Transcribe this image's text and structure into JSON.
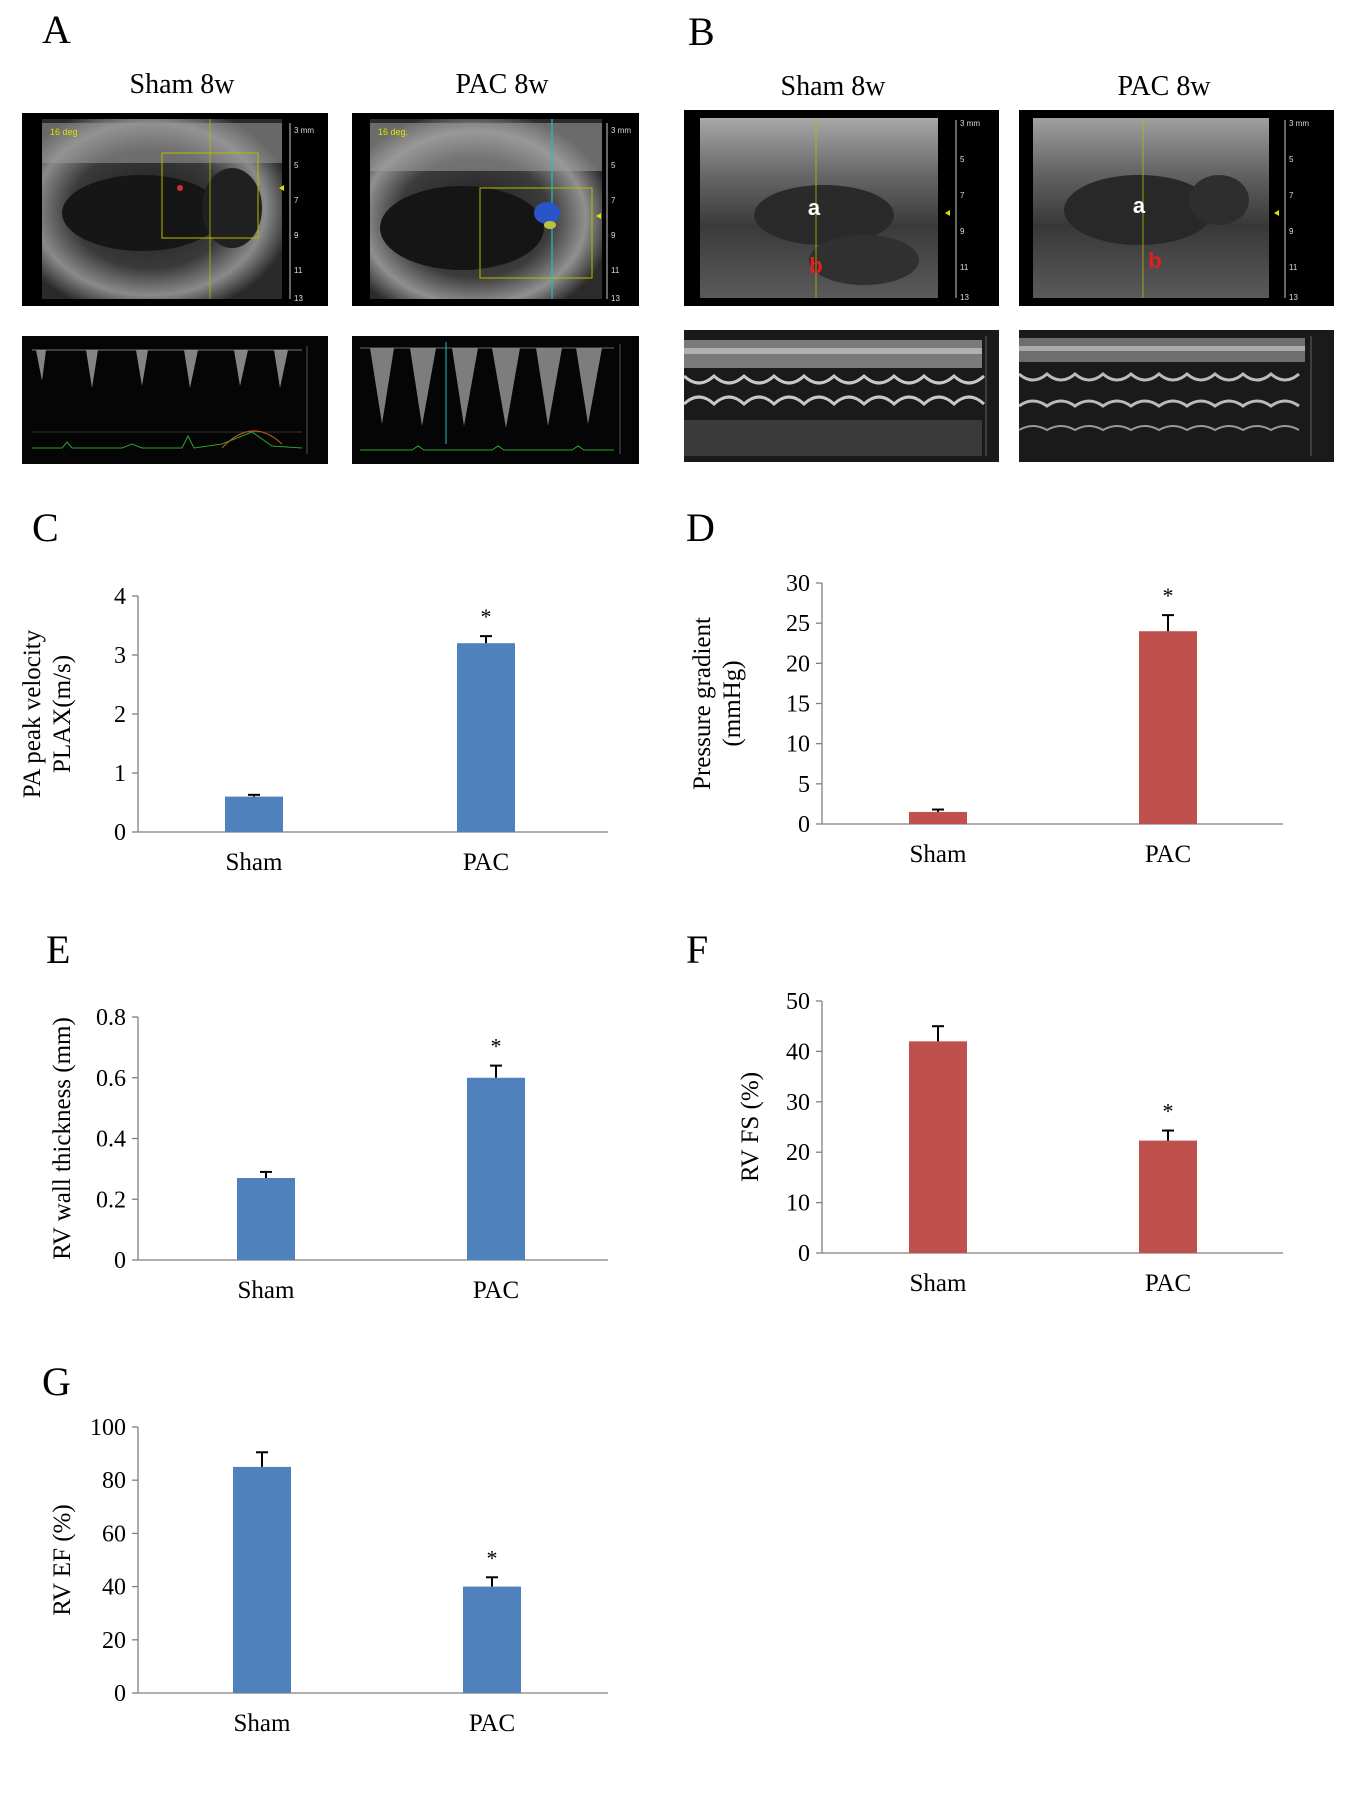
{
  "panels": {
    "A": {
      "letter": "A",
      "titles": [
        "Sham 8w",
        "PAC 8w"
      ],
      "images": [
        {
          "name": "sham-2d-echo",
          "overlay_text": "16 deg",
          "scale": [
            "3 mm",
            "5",
            "7",
            "9",
            "11",
            "13"
          ]
        },
        {
          "name": "pac-color-doppler",
          "overlay_text": "16 deg.",
          "scale": [
            "3 mm",
            "5",
            "7",
            "9",
            "11",
            "13"
          ]
        },
        {
          "name": "sham-pw-doppler"
        },
        {
          "name": "pac-pw-doppler"
        }
      ]
    },
    "B": {
      "letter": "B",
      "titles": [
        "Sham 8w",
        "PAC 8w"
      ],
      "labels": [
        "a",
        "b"
      ],
      "images": [
        {
          "name": "sham-b-mode",
          "scale": [
            "3 mm",
            "5",
            "7",
            "9",
            "11",
            "13"
          ]
        },
        {
          "name": "pac-b-mode",
          "scale": [
            "3 mm",
            "5",
            "7",
            "9",
            "11",
            "13"
          ]
        },
        {
          "name": "sham-m-mode"
        },
        {
          "name": "pac-m-mode"
        }
      ]
    }
  },
  "colors": {
    "blue": "#4F81BD",
    "red": "#C0504D",
    "axis": "#7f7f7f"
  },
  "chart_data": [
    {
      "id": "C",
      "letter": "C",
      "type": "bar",
      "categories": [
        "Sham",
        "PAC"
      ],
      "values": [
        0.6,
        3.2
      ],
      "errors": [
        0.03,
        0.12
      ],
      "ylabel_lines": [
        "PA peak velocity",
        "PLAX(m/s)"
      ],
      "ylim": [
        0,
        4
      ],
      "yticks": [
        "0",
        "1",
        "2",
        "3",
        "4"
      ],
      "color": "#4F81BD",
      "marks": [
        "",
        "*"
      ]
    },
    {
      "id": "D",
      "letter": "D",
      "type": "bar",
      "categories": [
        "Sham",
        "PAC"
      ],
      "values": [
        1.5,
        24
      ],
      "errors": [
        0.3,
        2.0
      ],
      "ylabel_lines": [
        "Pressure gradient",
        "(mmHg)"
      ],
      "ylim": [
        0,
        30
      ],
      "yticks": [
        "0",
        "5",
        "10",
        "15",
        "20",
        "25",
        "30"
      ],
      "color": "#C0504D",
      "marks": [
        "",
        "*"
      ]
    },
    {
      "id": "E",
      "letter": "E",
      "type": "bar",
      "categories": [
        "Sham",
        "PAC"
      ],
      "values": [
        0.27,
        0.6
      ],
      "errors": [
        0.02,
        0.04
      ],
      "ylabel_lines": [
        "RV wall thickness (mm)"
      ],
      "ylim": [
        0,
        0.8
      ],
      "yticks": [
        "0",
        "0.2",
        "0.4",
        "0.6",
        "0.8"
      ],
      "color": "#4F81BD",
      "marks": [
        "",
        "*"
      ]
    },
    {
      "id": "F",
      "letter": "F",
      "type": "bar",
      "categories": [
        "Sham",
        "PAC"
      ],
      "values": [
        42,
        22.3
      ],
      "errors": [
        3.0,
        2.0
      ],
      "ylabel_lines": [
        "RV FS (%)"
      ],
      "ylim": [
        0,
        50
      ],
      "yticks": [
        "0",
        "10",
        "20",
        "30",
        "40",
        "50"
      ],
      "color": "#C0504D",
      "marks": [
        "",
        "*"
      ]
    },
    {
      "id": "G",
      "letter": "G",
      "type": "bar",
      "categories": [
        "Sham",
        "PAC"
      ],
      "values": [
        85,
        40
      ],
      "errors": [
        5.5,
        3.5
      ],
      "ylabel_lines": [
        "RV EF (%)"
      ],
      "ylim": [
        0,
        100
      ],
      "yticks": [
        "0",
        "20",
        "40",
        "60",
        "80",
        "100"
      ],
      "color": "#4F81BD",
      "marks": [
        "",
        "*"
      ]
    }
  ]
}
